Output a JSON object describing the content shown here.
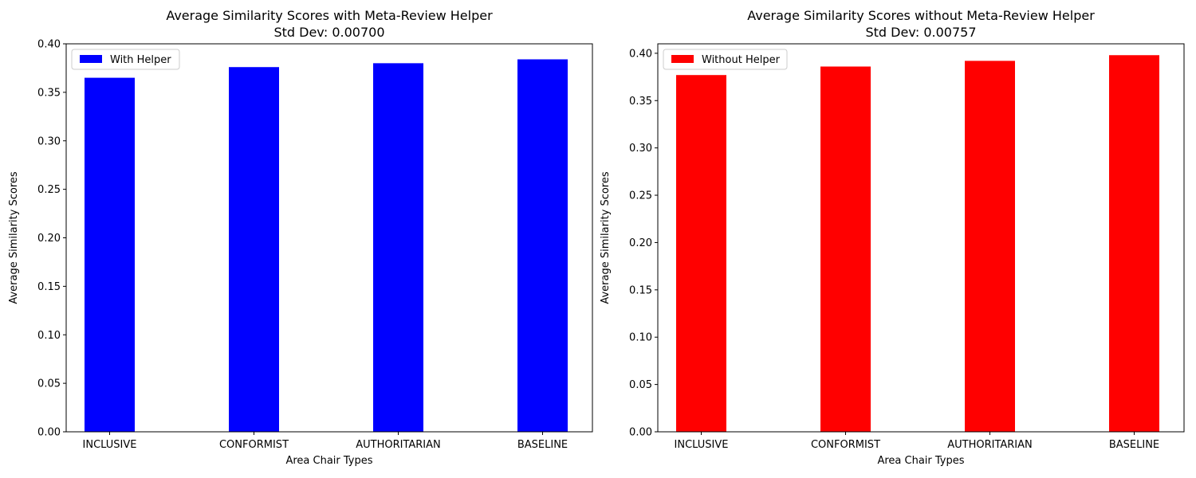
{
  "chart_data": [
    {
      "type": "bar",
      "title": "Average Similarity Scores with Meta-Review Helper",
      "subtitle": "Std Dev: 0.00700",
      "xlabel": "Area Chair Types",
      "ylabel": "Average Similarity Scores",
      "categories": [
        "INCLUSIVE",
        "CONFORMIST",
        "AUTHORITARIAN",
        "BASELINE"
      ],
      "series": [
        {
          "name": "With Helper",
          "values": [
            0.365,
            0.376,
            0.38,
            0.384
          ],
          "color": "#0000ff"
        }
      ],
      "ylim": [
        0,
        0.4
      ],
      "yticks": [
        "0.00",
        "0.05",
        "0.10",
        "0.15",
        "0.20",
        "0.25",
        "0.30",
        "0.35",
        "0.40"
      ],
      "legend_position": "top-left",
      "grid": false
    },
    {
      "type": "bar",
      "title": "Average Similarity Scores without Meta-Review Helper",
      "subtitle": "Std Dev: 0.00757",
      "xlabel": "Area Chair Types",
      "ylabel": "Average Similarity Scores",
      "categories": [
        "INCLUSIVE",
        "CONFORMIST",
        "AUTHORITARIAN",
        "BASELINE"
      ],
      "series": [
        {
          "name": "Without Helper",
          "values": [
            0.377,
            0.386,
            0.392,
            0.398
          ],
          "color": "#ff0000"
        }
      ],
      "ylim": [
        0,
        0.41
      ],
      "yticks": [
        "0.00",
        "0.05",
        "0.10",
        "0.15",
        "0.20",
        "0.25",
        "0.30",
        "0.35",
        "0.40"
      ],
      "legend_position": "top-left",
      "grid": false
    }
  ]
}
